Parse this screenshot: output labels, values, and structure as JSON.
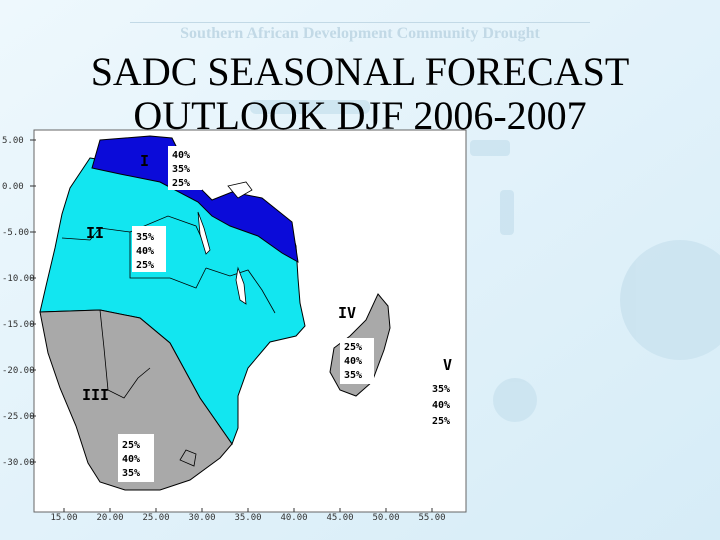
{
  "slide": {
    "title_line1": "SADC SEASONAL FORECAST",
    "title_line2": "OUTLOOK DJF 2006-2007",
    "background_heading": "Southern African Development Community Drought"
  },
  "colors": {
    "zone_I": "#0b0bd9",
    "zone_II": "#12e6f0",
    "zone_III": "#a9a9a9",
    "zone_IV": "#a9a9a9",
    "zone_V": "#ffffff",
    "water": "#ffffff",
    "border": "#000000"
  },
  "map": {
    "y_ticks": [
      "5.00",
      "0.00",
      "-5.00",
      "-10.00",
      "-15.00",
      "-20.00",
      "-25.00",
      "-30.00"
    ],
    "x_ticks": [
      "15.00",
      "20.00",
      "25.00",
      "30.00",
      "35.00",
      "40.00",
      "45.00",
      "50.00",
      "55.00"
    ],
    "zones": [
      {
        "id": "I",
        "label": "I",
        "above": "40%",
        "normal": "35%",
        "below": "25%"
      },
      {
        "id": "II",
        "label": "II",
        "above": "35%",
        "normal": "40%",
        "below": "25%"
      },
      {
        "id": "III",
        "label": "III",
        "above": "25%",
        "normal": "40%",
        "below": "35%"
      },
      {
        "id": "IV",
        "label": "IV",
        "above": "25%",
        "normal": "40%",
        "below": "35%"
      },
      {
        "id": "V",
        "label": "V",
        "above": "35%",
        "normal": "40%",
        "below": "25%"
      }
    ]
  }
}
